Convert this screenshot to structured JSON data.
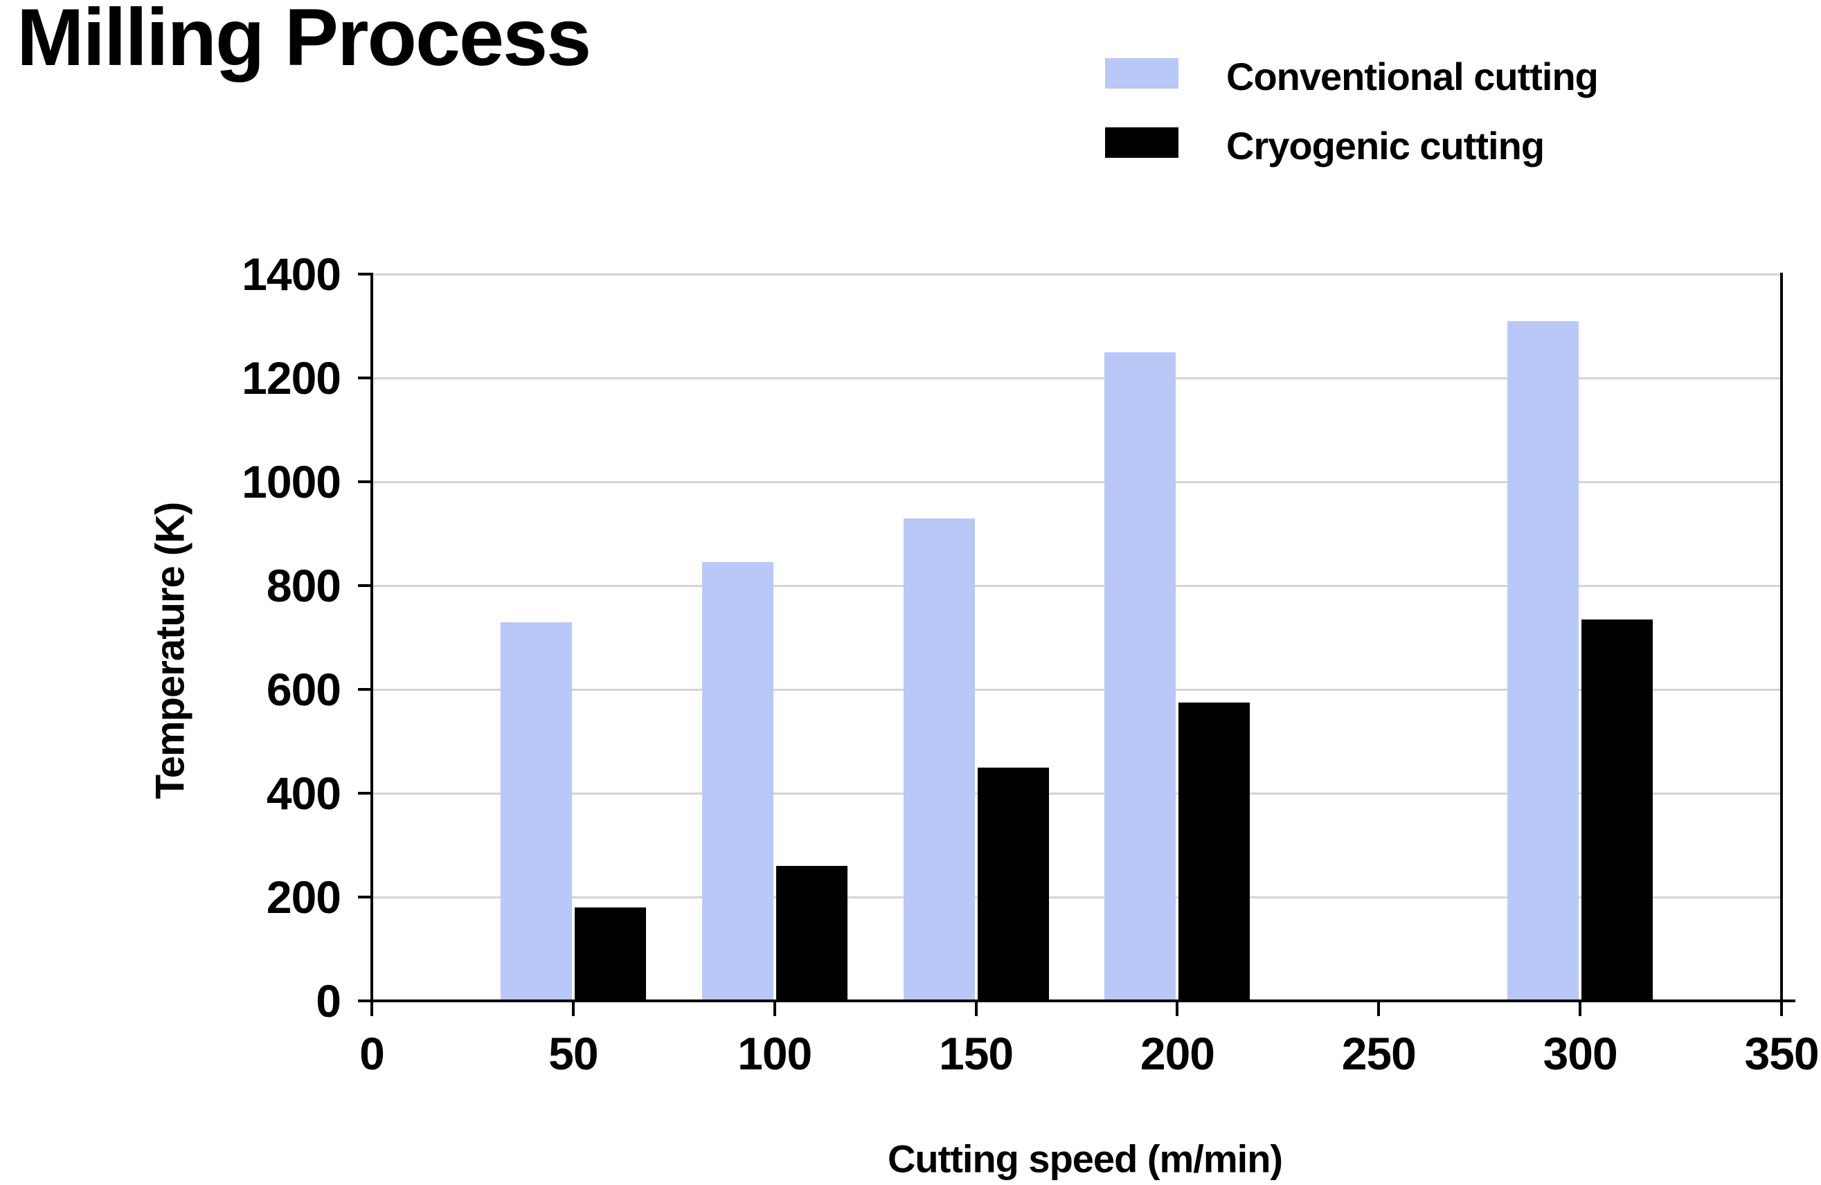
{
  "title": "Milling Process",
  "chart_data": {
    "type": "bar",
    "title": "Milling Process",
    "xlabel": "Cutting speed (m/min)",
    "ylabel": "Temperature (K)",
    "categories": [
      50,
      100,
      150,
      200,
      300
    ],
    "series": [
      {
        "name": "Conventional cutting",
        "color": "#b9c8f7",
        "values": [
          730,
          845,
          930,
          1250,
          1310
        ]
      },
      {
        "name": "Cryogenic cutting",
        "color": "#000000",
        "values": [
          180,
          260,
          450,
          575,
          735
        ]
      }
    ],
    "xlim": [
      0,
      350
    ],
    "ylim": [
      0,
      1400
    ],
    "x_ticks": [
      0,
      50,
      100,
      150,
      200,
      250,
      300,
      350
    ],
    "y_ticks": [
      0,
      200,
      400,
      600,
      800,
      1000,
      1200,
      1400
    ],
    "grid": true,
    "gridline_color": "#d4d4d4",
    "axis_color": "#000000",
    "background_color": "#ffffff",
    "legend_position": "top-right"
  }
}
